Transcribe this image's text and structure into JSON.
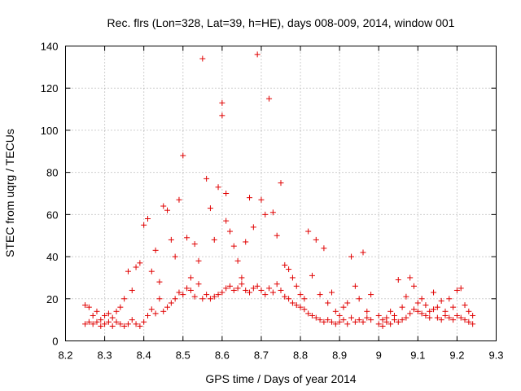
{
  "chart_data": {
    "type": "scatter",
    "title": "Rec. flrs (Lon=328, Lat=39, h=HE), days 008-009, 2014, window 001",
    "xlabel": "GPS time / Days of year 2014",
    "ylabel": "STEC from uqrg / TECUs",
    "xlim": [
      8.2,
      9.3
    ],
    "ylim": [
      0,
      140
    ],
    "x_ticks": [
      "8.2",
      "8.3",
      "8.4",
      "8.5",
      "8.6",
      "8.7",
      "8.8",
      "8.9",
      "9",
      "9.1",
      "9.2",
      "9.3"
    ],
    "y_ticks": [
      "0",
      "20",
      "40",
      "60",
      "80",
      "100",
      "120",
      "140"
    ],
    "grid": true,
    "marker": "+",
    "color": "#e00000",
    "series": [
      {
        "points": [
          [
            8.25,
            8
          ],
          [
            8.25,
            17
          ],
          [
            8.26,
            9
          ],
          [
            8.26,
            16
          ],
          [
            8.27,
            8
          ],
          [
            8.27,
            12
          ],
          [
            8.28,
            9
          ],
          [
            8.28,
            14
          ],
          [
            8.29,
            10
          ],
          [
            8.29,
            7
          ],
          [
            8.3,
            12
          ],
          [
            8.3,
            8
          ],
          [
            8.31,
            13
          ],
          [
            8.31,
            9
          ],
          [
            8.32,
            11
          ],
          [
            8.32,
            7
          ],
          [
            8.33,
            14
          ],
          [
            8.33,
            9
          ],
          [
            8.34,
            8
          ],
          [
            8.34,
            16
          ],
          [
            8.35,
            7
          ],
          [
            8.35,
            20
          ],
          [
            8.36,
            8
          ],
          [
            8.36,
            33
          ],
          [
            8.37,
            10
          ],
          [
            8.37,
            24
          ],
          [
            8.38,
            8
          ],
          [
            8.38,
            35
          ],
          [
            8.39,
            7
          ],
          [
            8.39,
            37
          ],
          [
            8.4,
            9
          ],
          [
            8.4,
            55
          ],
          [
            8.41,
            12
          ],
          [
            8.41,
            58
          ],
          [
            8.42,
            15
          ],
          [
            8.42,
            33
          ],
          [
            8.43,
            13
          ],
          [
            8.43,
            43
          ],
          [
            8.44,
            20
          ],
          [
            8.44,
            28
          ],
          [
            8.45,
            14
          ],
          [
            8.45,
            64
          ],
          [
            8.46,
            16
          ],
          [
            8.46,
            62
          ],
          [
            8.47,
            18
          ],
          [
            8.47,
            48
          ],
          [
            8.48,
            20
          ],
          [
            8.48,
            40
          ],
          [
            8.49,
            23
          ],
          [
            8.49,
            67
          ],
          [
            8.5,
            22
          ],
          [
            8.5,
            88
          ],
          [
            8.51,
            25
          ],
          [
            8.51,
            49
          ],
          [
            8.52,
            24
          ],
          [
            8.52,
            30
          ],
          [
            8.53,
            21
          ],
          [
            8.53,
            46
          ],
          [
            8.54,
            27
          ],
          [
            8.54,
            38
          ],
          [
            8.55,
            20
          ],
          [
            8.55,
            134
          ],
          [
            8.56,
            22
          ],
          [
            8.56,
            77
          ],
          [
            8.57,
            20
          ],
          [
            8.57,
            63
          ],
          [
            8.58,
            21
          ],
          [
            8.58,
            48
          ],
          [
            8.59,
            22
          ],
          [
            8.59,
            73
          ],
          [
            8.6,
            23
          ],
          [
            8.6,
            113
          ],
          [
            8.6,
            107
          ],
          [
            8.61,
            25
          ],
          [
            8.61,
            70
          ],
          [
            8.61,
            57
          ],
          [
            8.62,
            26
          ],
          [
            8.62,
            52
          ],
          [
            8.63,
            24
          ],
          [
            8.63,
            45
          ],
          [
            8.64,
            25
          ],
          [
            8.64,
            38
          ],
          [
            8.65,
            27
          ],
          [
            8.65,
            30
          ],
          [
            8.66,
            24
          ],
          [
            8.66,
            47
          ],
          [
            8.67,
            23
          ],
          [
            8.67,
            68
          ],
          [
            8.68,
            25
          ],
          [
            8.68,
            54
          ],
          [
            8.69,
            26
          ],
          [
            8.69,
            136
          ],
          [
            8.7,
            24
          ],
          [
            8.7,
            67
          ],
          [
            8.71,
            22
          ],
          [
            8.71,
            60
          ],
          [
            8.72,
            25
          ],
          [
            8.72,
            115
          ],
          [
            8.73,
            23
          ],
          [
            8.73,
            61
          ],
          [
            8.74,
            27
          ],
          [
            8.74,
            50
          ],
          [
            8.75,
            24
          ],
          [
            8.75,
            75
          ],
          [
            8.76,
            21
          ],
          [
            8.76,
            36
          ],
          [
            8.77,
            20
          ],
          [
            8.77,
            34
          ],
          [
            8.78,
            18
          ],
          [
            8.78,
            30
          ],
          [
            8.79,
            17
          ],
          [
            8.79,
            26
          ],
          [
            8.8,
            16
          ],
          [
            8.8,
            22
          ],
          [
            8.81,
            15
          ],
          [
            8.81,
            20
          ],
          [
            8.82,
            13
          ],
          [
            8.82,
            52
          ],
          [
            8.83,
            12
          ],
          [
            8.83,
            31
          ],
          [
            8.84,
            11
          ],
          [
            8.84,
            48
          ],
          [
            8.85,
            10
          ],
          [
            8.85,
            22
          ],
          [
            8.86,
            9
          ],
          [
            8.86,
            44
          ],
          [
            8.87,
            10
          ],
          [
            8.87,
            18
          ],
          [
            8.88,
            9
          ],
          [
            8.88,
            23
          ],
          [
            8.89,
            8
          ],
          [
            8.89,
            14
          ],
          [
            8.9,
            9
          ],
          [
            8.9,
            12
          ],
          [
            8.91,
            10
          ],
          [
            8.91,
            16
          ],
          [
            8.92,
            8
          ],
          [
            8.92,
            18
          ],
          [
            8.93,
            40
          ],
          [
            8.93,
            11
          ],
          [
            8.94,
            9
          ],
          [
            8.94,
            26
          ],
          [
            8.95,
            10
          ],
          [
            8.95,
            20
          ],
          [
            8.96,
            9
          ],
          [
            8.96,
            42
          ],
          [
            8.97,
            11
          ],
          [
            8.97,
            14
          ],
          [
            8.98,
            10
          ],
          [
            8.98,
            22
          ],
          [
            9.0,
            8
          ],
          [
            9.0,
            12
          ],
          [
            9.01,
            7
          ],
          [
            9.01,
            10
          ],
          [
            9.02,
            9
          ],
          [
            9.02,
            11
          ],
          [
            9.03,
            8
          ],
          [
            9.03,
            14
          ],
          [
            9.04,
            10
          ],
          [
            9.04,
            12
          ],
          [
            9.05,
            9
          ],
          [
            9.05,
            29
          ],
          [
            9.06,
            10
          ],
          [
            9.06,
            16
          ],
          [
            9.07,
            11
          ],
          [
            9.07,
            21
          ],
          [
            9.08,
            13
          ],
          [
            9.08,
            30
          ],
          [
            9.09,
            15
          ],
          [
            9.09,
            26
          ],
          [
            9.1,
            14
          ],
          [
            9.1,
            18
          ],
          [
            9.11,
            13
          ],
          [
            9.11,
            20
          ],
          [
            9.12,
            12
          ],
          [
            9.12,
            17
          ],
          [
            9.13,
            14
          ],
          [
            9.13,
            11
          ],
          [
            9.14,
            15
          ],
          [
            9.14,
            23
          ],
          [
            9.15,
            11
          ],
          [
            9.15,
            16
          ],
          [
            9.16,
            10
          ],
          [
            9.16,
            19
          ],
          [
            9.17,
            12
          ],
          [
            9.17,
            14
          ],
          [
            9.18,
            11
          ],
          [
            9.18,
            20
          ],
          [
            9.19,
            10
          ],
          [
            9.19,
            16
          ],
          [
            9.2,
            12
          ],
          [
            9.2,
            24
          ],
          [
            9.21,
            11
          ],
          [
            9.21,
            25
          ],
          [
            9.22,
            10
          ],
          [
            9.22,
            17
          ],
          [
            9.23,
            9
          ],
          [
            9.23,
            14
          ],
          [
            9.24,
            8
          ],
          [
            9.24,
            12
          ]
        ]
      }
    ]
  }
}
